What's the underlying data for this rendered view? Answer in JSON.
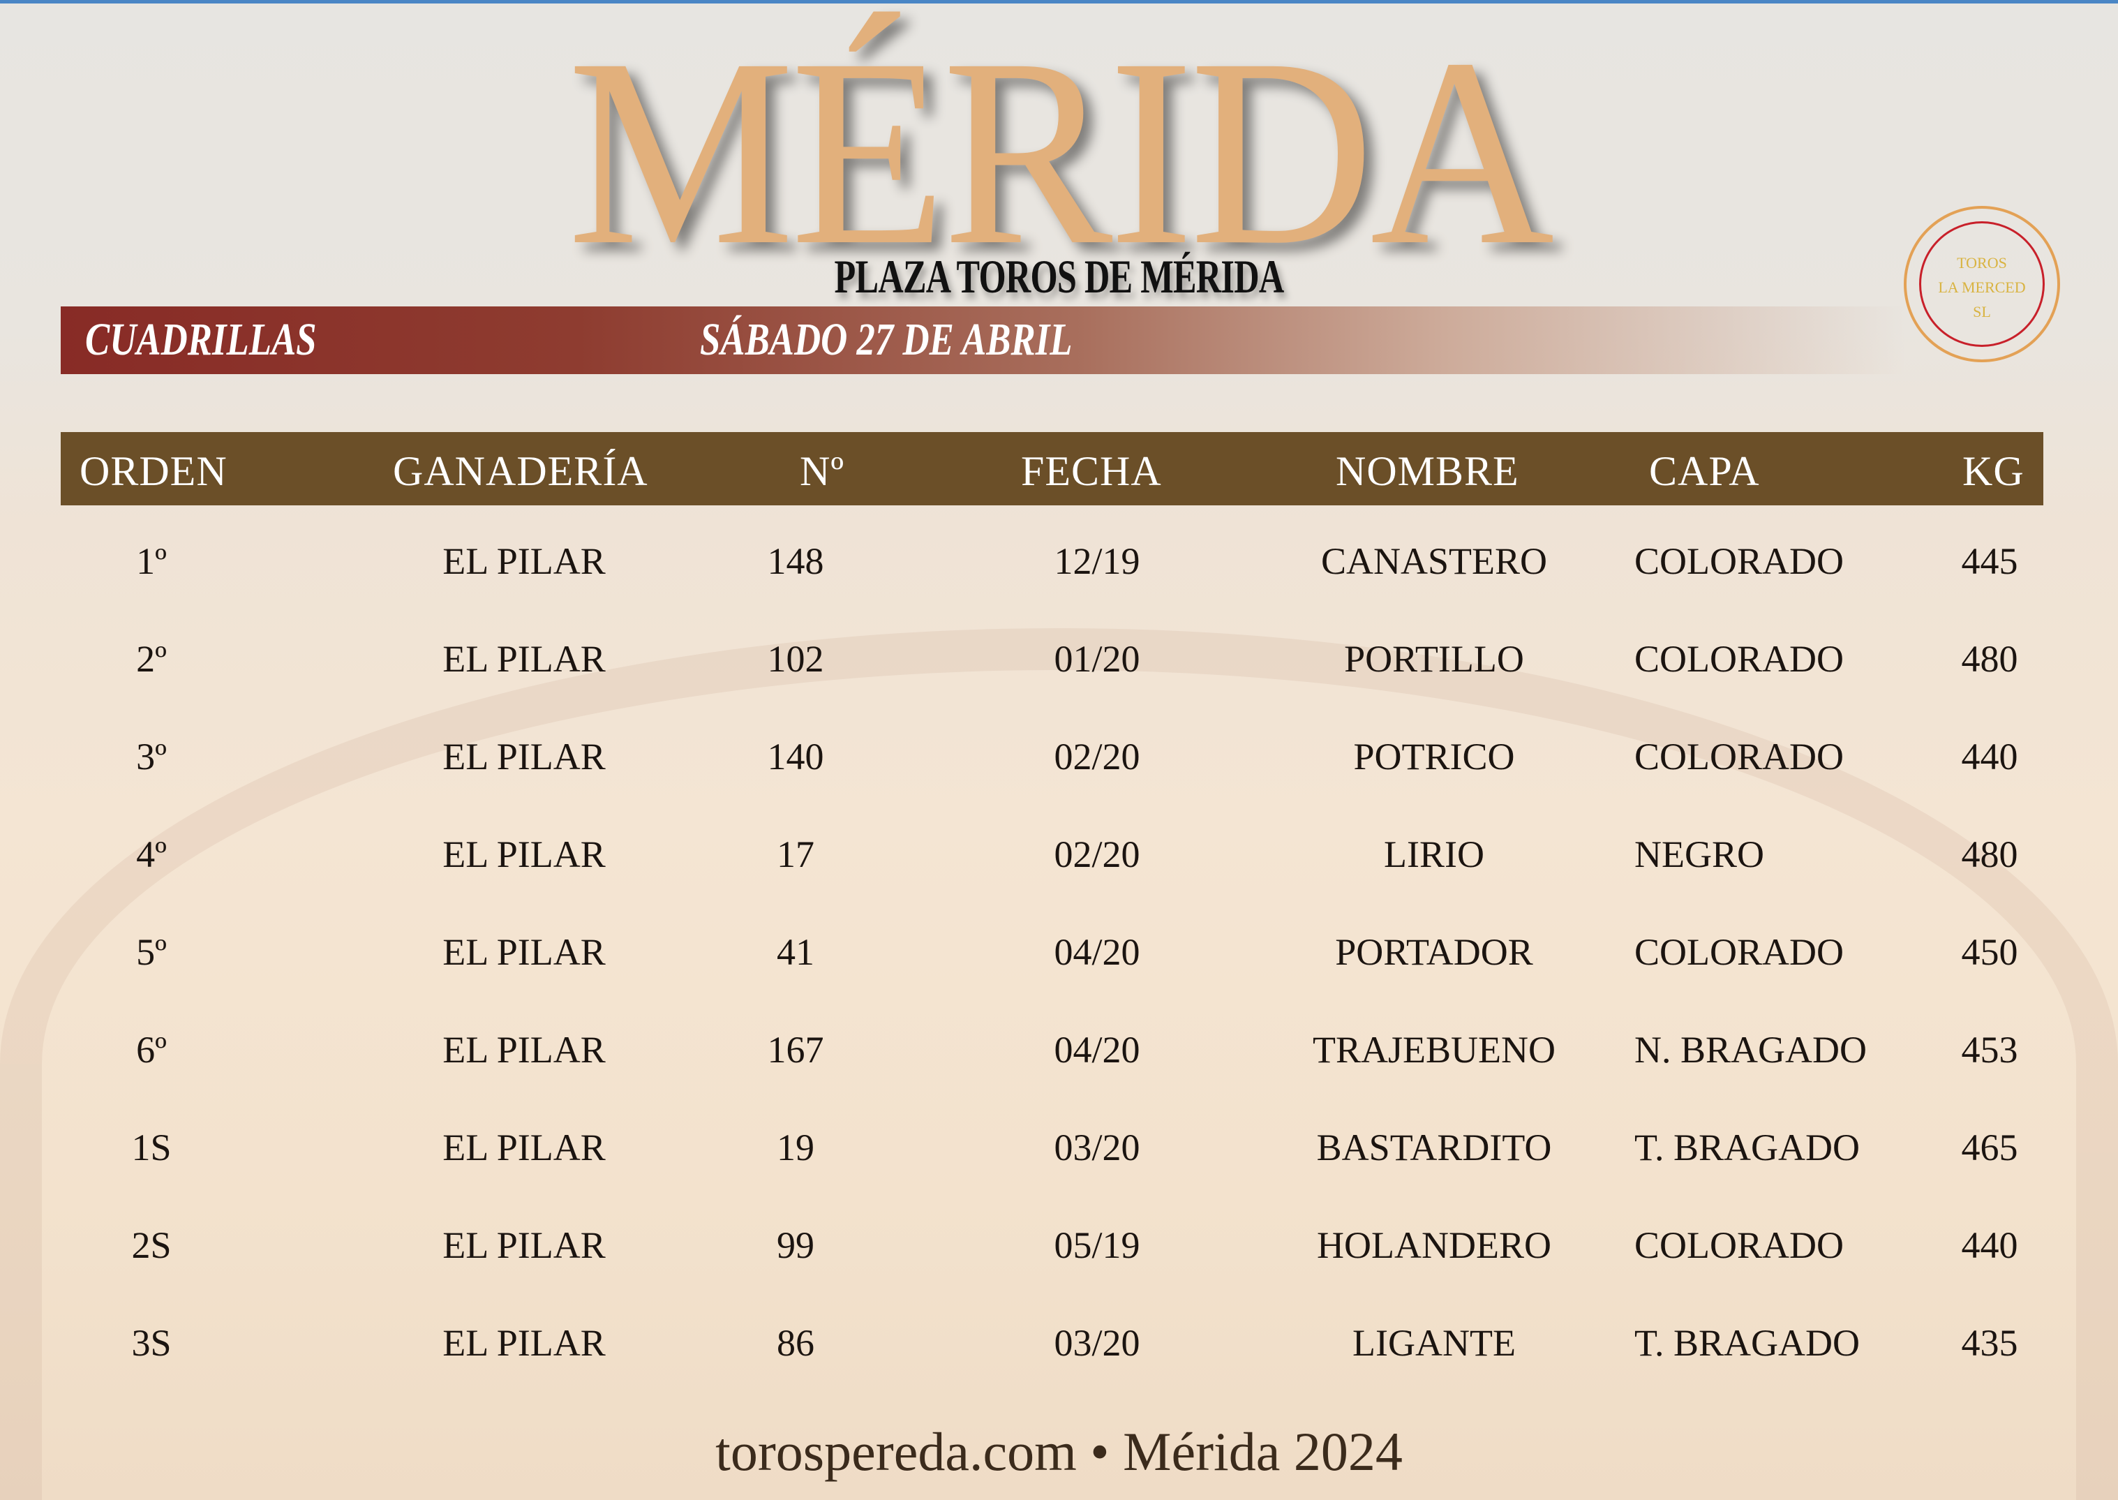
{
  "title": "MÉRIDA",
  "subtitle": "PLAZA TOROS DE MÉRIDA",
  "band": {
    "left": "CUADRILLAS",
    "date": "SÁBADO 27 DE ABRIL"
  },
  "logo": {
    "line1": "TOROS",
    "line2": "LA MERCED",
    "line3": "SL"
  },
  "colors": {
    "title": "#e2b07c",
    "band": "#882b26",
    "header": "#6b4f28"
  },
  "table": {
    "headers": [
      "ORDEN",
      "GANADERÍA",
      "Nº",
      "FECHA",
      "NOMBRE",
      "CAPA",
      "KG"
    ],
    "rows": [
      [
        "1º",
        "EL PILAR",
        "148",
        "12/19",
        "CANASTERO",
        "COLORADO",
        "445"
      ],
      [
        "2º",
        "EL PILAR",
        "102",
        "01/20",
        "PORTILLO",
        "COLORADO",
        "480"
      ],
      [
        "3º",
        "EL PILAR",
        "140",
        "02/20",
        "POTRICO",
        "COLORADO",
        "440"
      ],
      [
        "4º",
        "EL PILAR",
        "17",
        "02/20",
        "LIRIO",
        "NEGRO",
        "480"
      ],
      [
        "5º",
        "EL PILAR",
        "41",
        "04/20",
        "PORTADOR",
        "COLORADO",
        "450"
      ],
      [
        "6º",
        "EL PILAR",
        "167",
        "04/20",
        "TRAJEBUENO",
        "N. BRAGADO",
        "453"
      ],
      [
        "1S",
        "EL PILAR",
        "19",
        "03/20",
        "BASTARDITO",
        "T. BRAGADO",
        "465"
      ],
      [
        "2S",
        "EL PILAR",
        "99",
        "05/19",
        "HOLANDERO",
        "COLORADO",
        "440"
      ],
      [
        "3S",
        "EL PILAR",
        "86",
        "03/20",
        "LIGANTE",
        "T. BRAGADO",
        "435"
      ]
    ]
  },
  "footer": "torospereda.com • Mérida 2024"
}
